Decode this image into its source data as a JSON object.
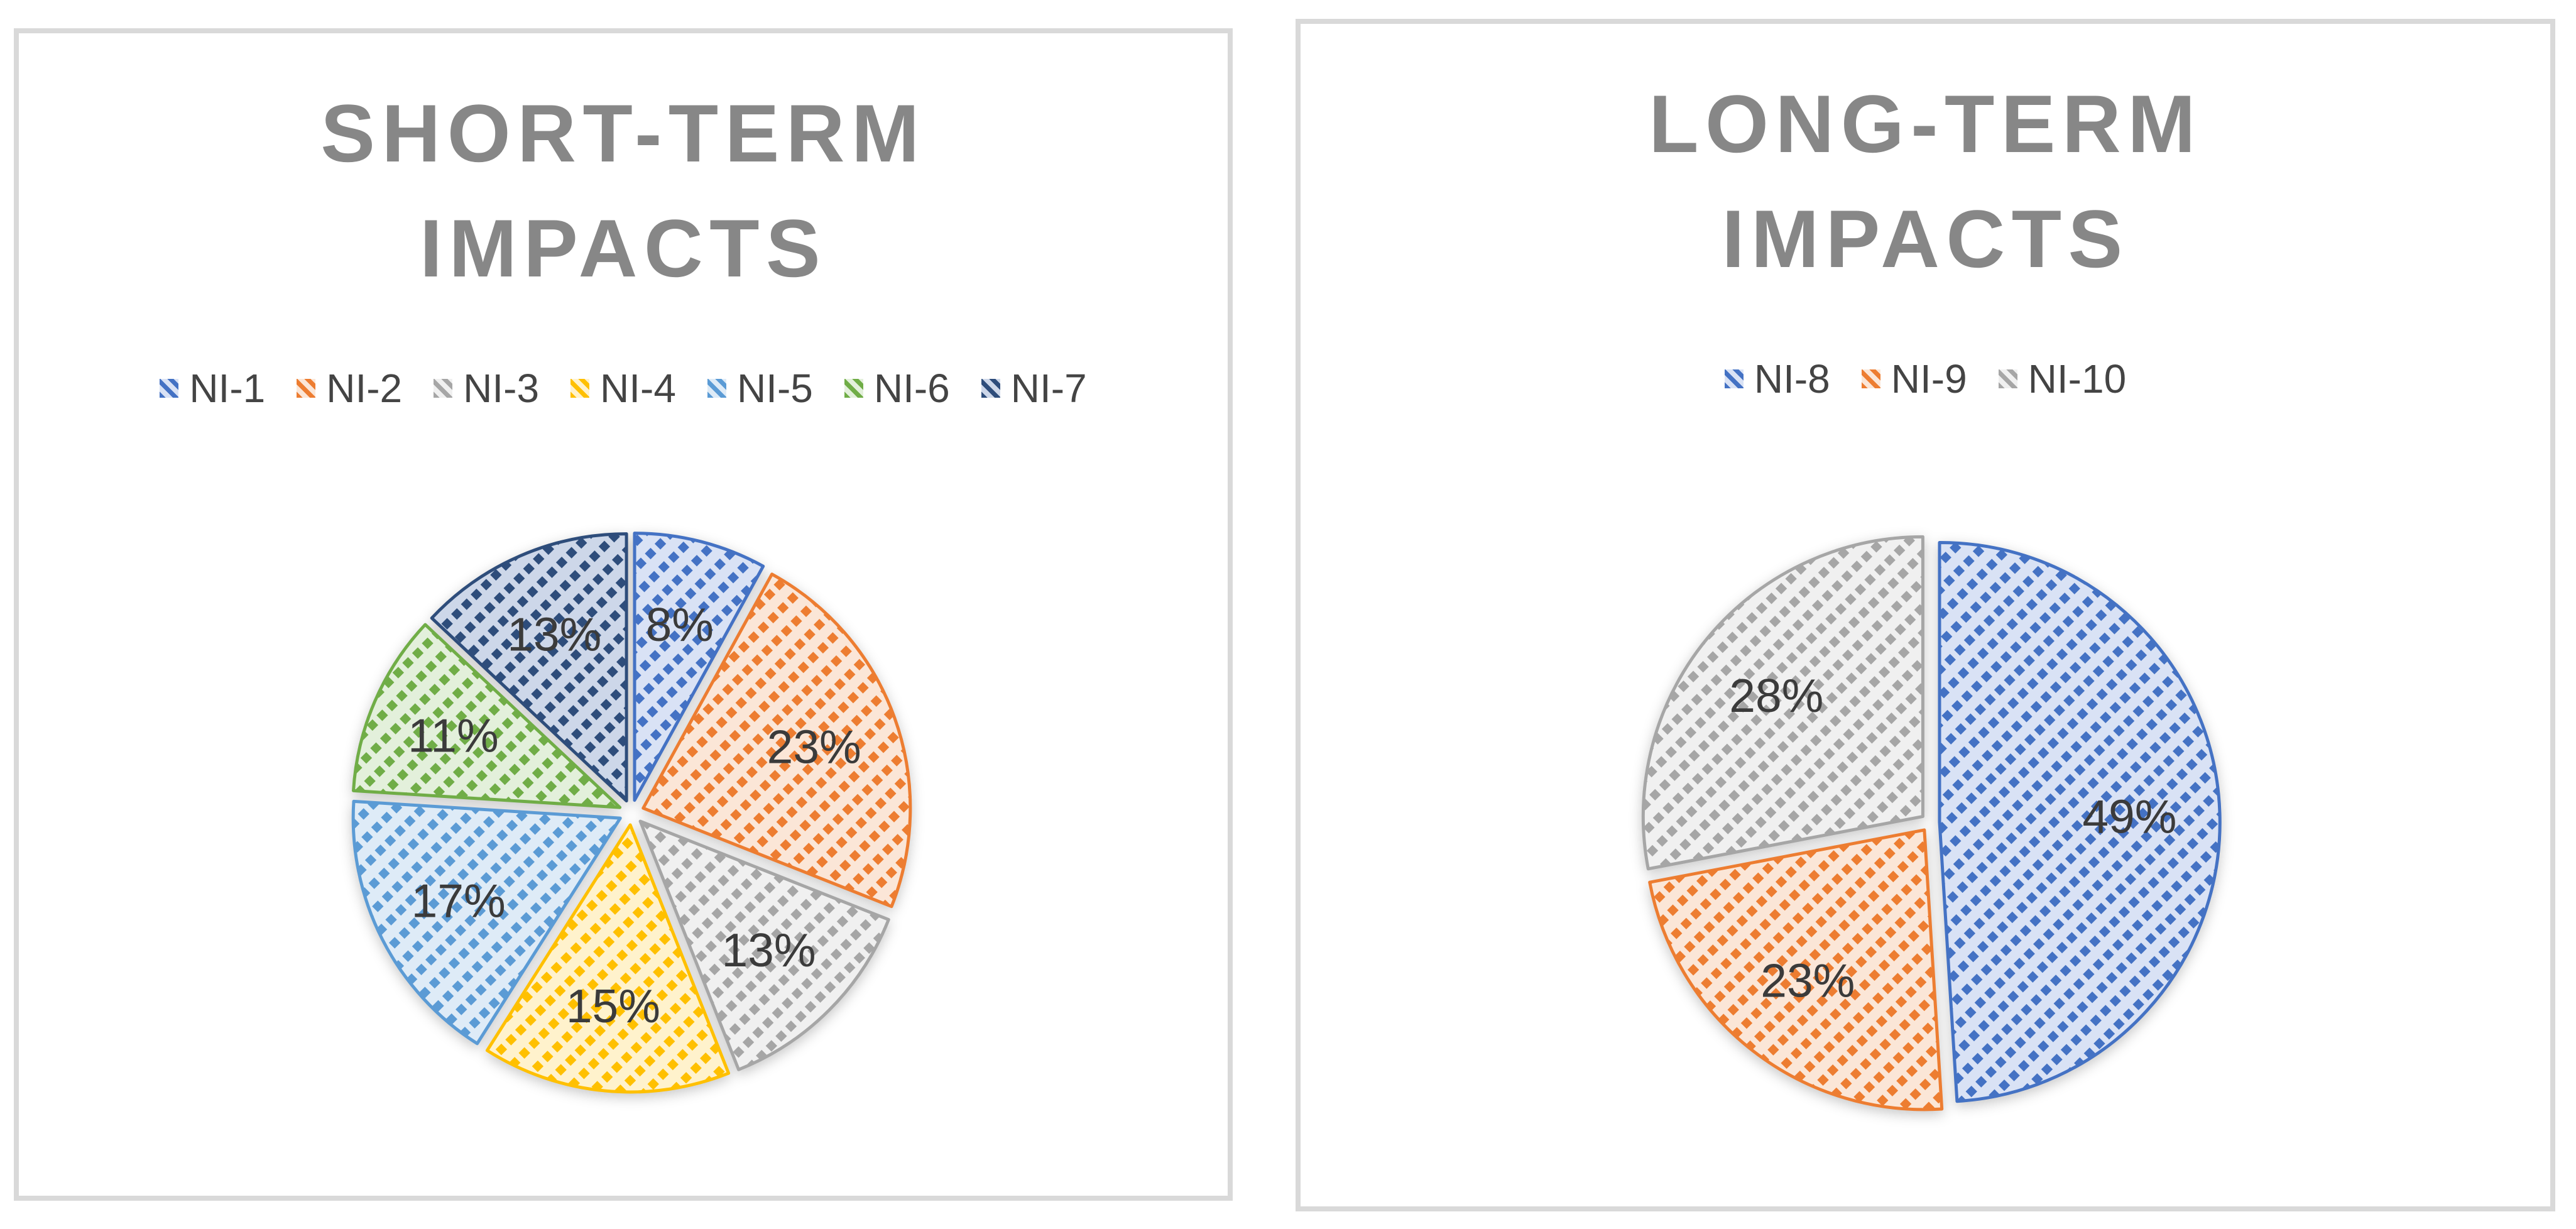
{
  "chart_data": [
    {
      "type": "pie",
      "title": "SHORT-TERM IMPACTS",
      "categories": [
        "NI-1",
        "NI-2",
        "NI-3",
        "NI-4",
        "NI-5",
        "NI-6",
        "NI-7"
      ],
      "values": [
        8,
        23,
        13,
        15,
        17,
        11,
        13
      ],
      "labels": [
        "8%",
        "23%",
        "13%",
        "15%",
        "17%",
        "11%",
        "13%"
      ],
      "colors": [
        "#4472C4",
        "#ED7D31",
        "#A6A6A6",
        "#FFC000",
        "#5B9BD5",
        "#70AD47",
        "#2E4D7B"
      ],
      "tints": [
        "#D9E2F5",
        "#FBE6D7",
        "#F0F0F0",
        "#FFF2CC",
        "#DEEBF7",
        "#E3F0DB",
        "#CDD7E9"
      ],
      "start_angle_deg": 0,
      "direction": "clockwise",
      "legend_position": "top",
      "fill_pattern": "diagonal-dash"
    },
    {
      "type": "pie",
      "title": "LONG-TERM IMPACTS",
      "categories": [
        "NI-8",
        "NI-9",
        "NI-10"
      ],
      "values": [
        49,
        23,
        28
      ],
      "labels": [
        "49%",
        "23%",
        "28%"
      ],
      "colors": [
        "#4472C4",
        "#ED7D31",
        "#A6A6A6"
      ],
      "tints": [
        "#D9E2F5",
        "#FBE6D7",
        "#F0F0F0"
      ],
      "start_angle_deg": 0,
      "direction": "clockwise",
      "legend_position": "top",
      "fill_pattern": "diagonal-dash"
    }
  ],
  "style": {
    "title_color": "#878787",
    "label_color": "#3B3B3B",
    "legend_text_color": "#444444",
    "panel_border_color": "#D9D9D9",
    "background": "#FFFFFF"
  }
}
